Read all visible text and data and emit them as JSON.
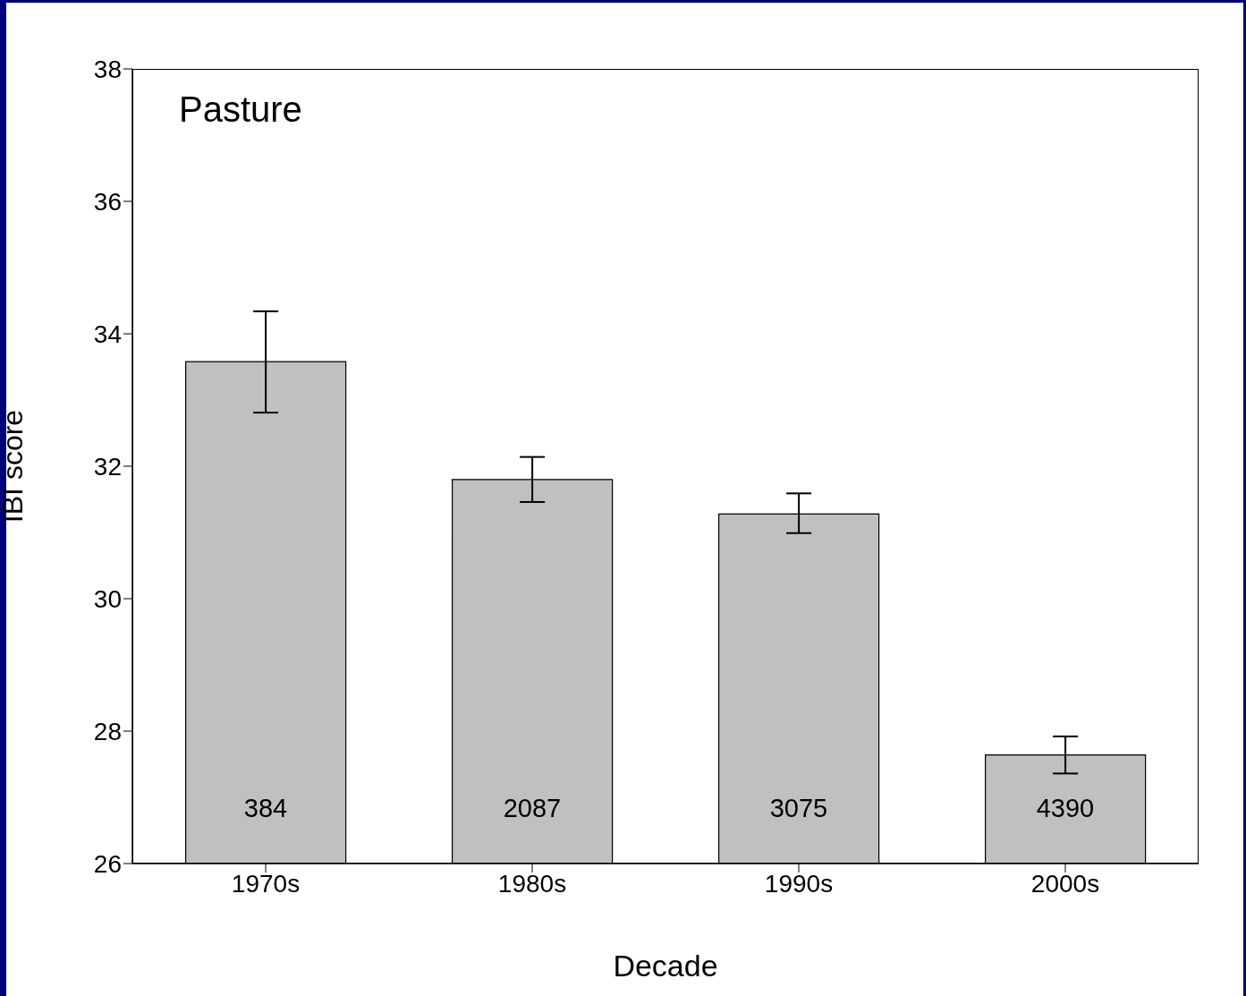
{
  "chart_data": {
    "type": "bar",
    "xlabel": "Decade",
    "ylabel": "IBI score",
    "categories": [
      "1970s",
      "1980s",
      "1990s",
      "2000s"
    ],
    "values": [
      33.58,
      31.8,
      31.28,
      27.64
    ],
    "errors": [
      [
        32.81,
        34.34
      ],
      [
        31.46,
        32.14
      ],
      [
        30.99,
        31.59
      ],
      [
        27.36,
        27.92
      ]
    ],
    "color": "#c0c0c0",
    "ylim": [
      26,
      38
    ],
    "yticks": [
      26,
      28,
      30,
      32,
      34,
      36,
      38
    ],
    "grid": false,
    "legend": false,
    "annotations": [
      "Pasture",
      "384",
      "2087",
      "3075",
      "4390"
    ]
  }
}
